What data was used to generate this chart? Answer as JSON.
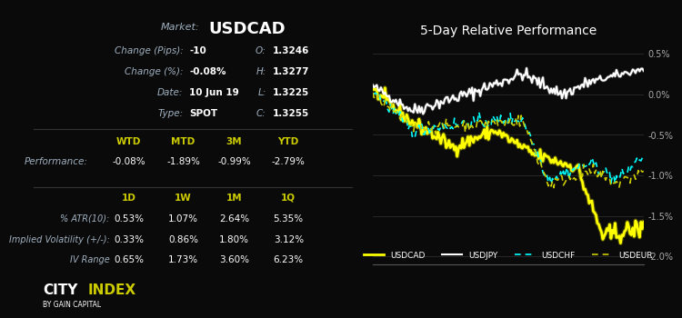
{
  "bg_color": "#0a0a0a",
  "left_panel": {
    "market_label": "Market:",
    "market_value": "USDCAD",
    "rows": [
      [
        "Change (Pips):",
        "-10",
        "O:",
        "1.3246"
      ],
      [
        "Change (%):",
        "-0.08%",
        "H:",
        "1.3277"
      ],
      [
        "Date:",
        "10 Jun 19",
        "L:",
        "1.3225"
      ],
      [
        "Type:",
        "SPOT",
        "C:",
        "1.3255"
      ]
    ],
    "perf_header": [
      "WTD",
      "MTD",
      "3M",
      "YTD"
    ],
    "perf_label": "Performance:",
    "perf_values": [
      "-0.08%",
      "-1.89%",
      "-0.99%",
      "-2.79%"
    ],
    "vol_header": [
      "1D",
      "1W",
      "1M",
      "1Q"
    ],
    "vol_rows": [
      [
        "% ATR(10):",
        "0.53%",
        "1.07%",
        "2.64%",
        "5.35%"
      ],
      [
        "Implied Volatility (+/-):",
        "0.33%",
        "0.86%",
        "1.80%",
        "3.12%"
      ],
      [
        "IV Range",
        "0.65%",
        "1.73%",
        "3.60%",
        "6.23%"
      ]
    ],
    "city_index_city": "CITY",
    "city_index_index": "INDEX",
    "city_index_sub": "BY GAIN CAPITAL"
  },
  "chart": {
    "title": "5-Day Relative Performance",
    "ylim": [
      -2.1,
      0.65
    ],
    "yticks": [
      0.5,
      0.0,
      -0.5,
      -1.0,
      -1.5,
      -2.0
    ],
    "ytick_labels": [
      "0.5%",
      "0.0%",
      "-0.5%",
      "-1.0%",
      "-1.5%",
      "-2.0%"
    ],
    "legend_items": [
      {
        "label": "USDCAD",
        "color": "#ffff00",
        "linestyle": "solid",
        "linewidth": 2.0
      },
      {
        "label": "USDJPY",
        "color": "#ffffff",
        "linestyle": "solid",
        "linewidth": 1.5
      },
      {
        "label": "USDCHF",
        "color": "#00ffff",
        "linestyle": "dashed",
        "linewidth": 1.2
      },
      {
        "label": "USDEUR",
        "color": "#cccc00",
        "linestyle": "dashed",
        "linewidth": 1.2
      }
    ]
  },
  "colors": {
    "label_color": "#a0b0c0",
    "value_color": "#ffffff",
    "header_color": "#cccc00",
    "market_value_color": "#ffffff",
    "title_color": "#ffffff",
    "grid_color": "#333333",
    "axis_color": "#555555"
  }
}
